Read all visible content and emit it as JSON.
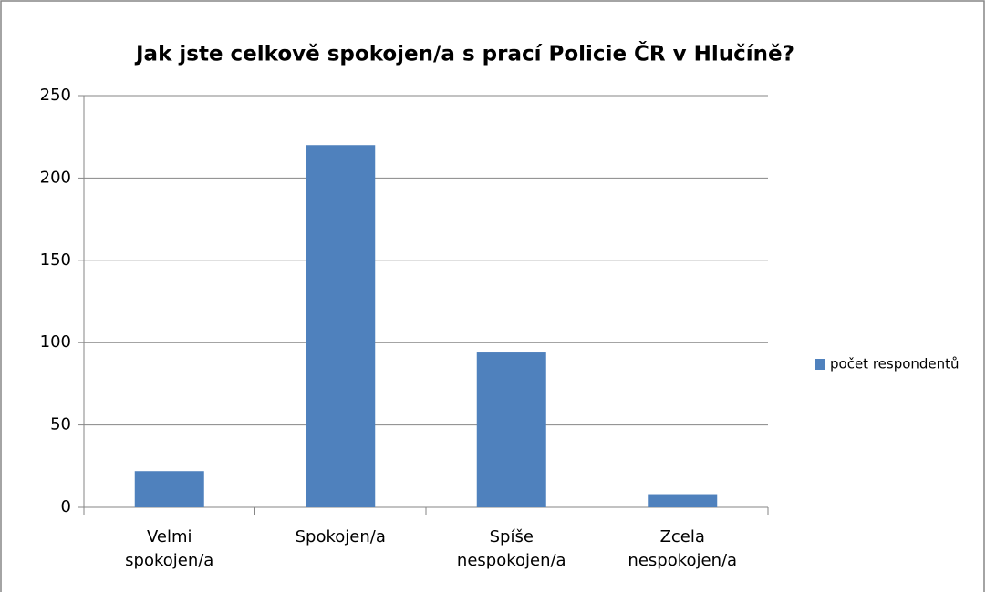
{
  "chart_data": {
    "type": "bar",
    "title": "Jak jste celkově spokojen/a  s prací Policie ČR v Hlučíně?",
    "categories": [
      "Velmi spokojen/a",
      "Spokojen/a",
      "Spíše nespokojen/a",
      "Zcela nespokojen/a"
    ],
    "series": [
      {
        "name": "počet respondentů",
        "color": "#4f81bd",
        "values": [
          22,
          220,
          94,
          8
        ]
      }
    ],
    "ylim": [
      0,
      250
    ],
    "yticks": [
      0,
      50,
      100,
      150,
      200,
      250
    ],
    "grid": true,
    "legend": "right"
  }
}
